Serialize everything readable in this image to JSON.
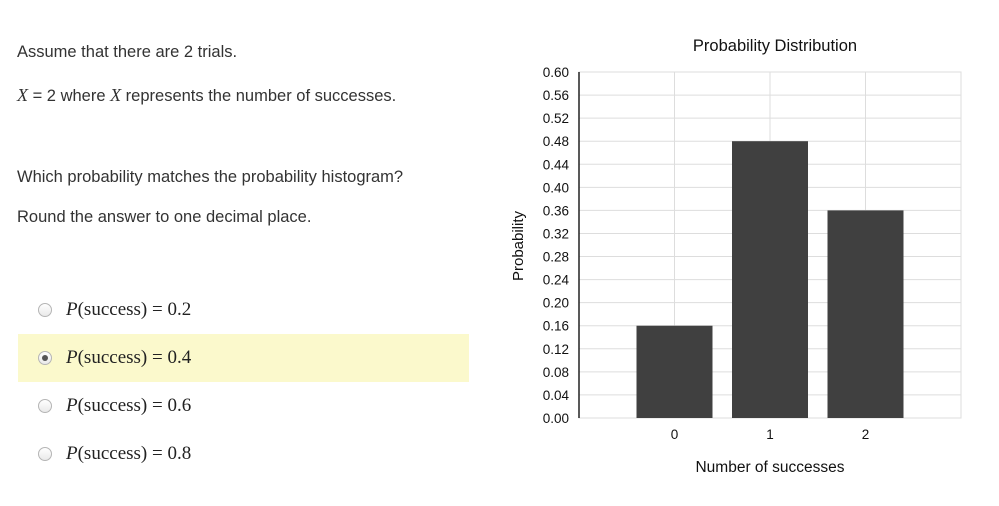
{
  "question": {
    "line1": "Assume that there are 2 trials.",
    "line2_var": "X",
    "line2_mid": " = 2 where ",
    "line2_var2": "X",
    "line2_rest": " represents the number of successes.",
    "line3": "Which probability matches the probability histogram?",
    "line4": "Round the answer to one decimal place."
  },
  "options": [
    {
      "prefix": "P",
      "arg": "(success)",
      "eq": " = ",
      "value": "0.2",
      "selected": false
    },
    {
      "prefix": "P",
      "arg": "(success)",
      "eq": " = ",
      "value": "0.4",
      "selected": true
    },
    {
      "prefix": "P",
      "arg": "(success)",
      "eq": " = ",
      "value": "0.6",
      "selected": false
    },
    {
      "prefix": "P",
      "arg": "(success)",
      "eq": " = ",
      "value": "0.8",
      "selected": false
    }
  ],
  "colors": {
    "bar": "#404040",
    "grid": "#dddddd",
    "selected_bg": "#fbf9cc"
  },
  "chart_data": {
    "type": "bar",
    "title": "Probability Distribution",
    "xlabel": "Number of successes",
    "ylabel": "Probability",
    "categories": [
      "0",
      "1",
      "2"
    ],
    "values": [
      0.16,
      0.48,
      0.36
    ],
    "ylim": [
      0,
      0.6
    ],
    "yticks": [
      "0.00",
      "0.04",
      "0.08",
      "0.12",
      "0.16",
      "0.20",
      "0.24",
      "0.28",
      "0.32",
      "0.36",
      "0.40",
      "0.44",
      "0.48",
      "0.52",
      "0.56",
      "0.60"
    ],
    "grid": true
  }
}
